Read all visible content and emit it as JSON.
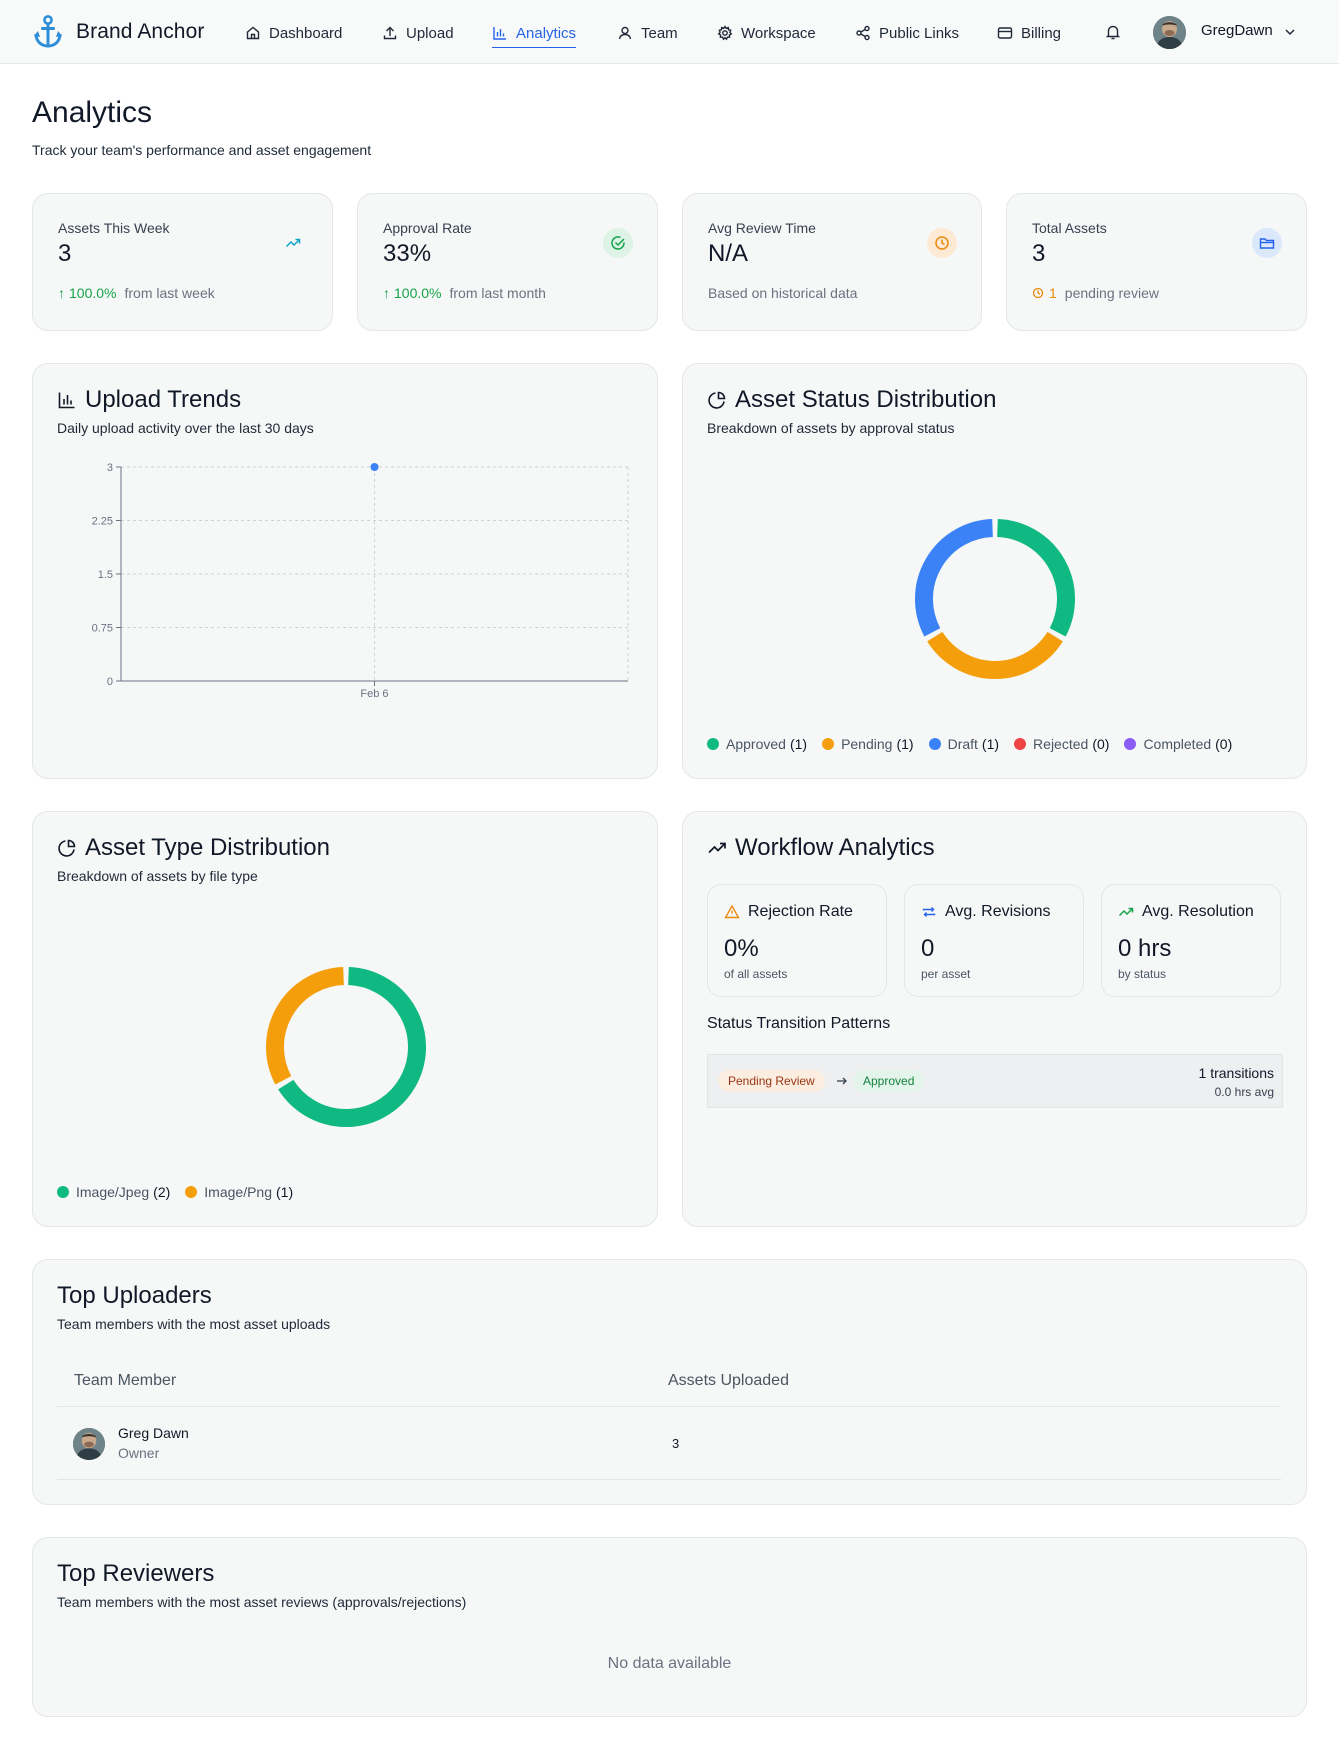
{
  "brand": {
    "name": "Brand Anchor",
    "accent": "#2e8fd8"
  },
  "nav": {
    "items": [
      {
        "label": "Dashboard",
        "icon": "home-icon"
      },
      {
        "label": "Upload",
        "icon": "upload-icon"
      },
      {
        "label": "Analytics",
        "icon": "bar-chart-icon",
        "active": true
      },
      {
        "label": "Team",
        "icon": "user-icon"
      },
      {
        "label": "Workspace",
        "icon": "gear-icon"
      },
      {
        "label": "Public Links",
        "icon": "share-icon"
      },
      {
        "label": "Billing",
        "icon": "credit-card-icon"
      }
    ],
    "user": "GregDawn"
  },
  "header": {
    "title": "Analytics",
    "subtitle": "Track your team's performance and asset engagement"
  },
  "stats": [
    {
      "label": "Assets This Week",
      "value": "3",
      "delta": "100.0%",
      "note": "from last week",
      "icon": "trending-up-icon"
    },
    {
      "label": "Approval Rate",
      "value": "33%",
      "delta": "100.0%",
      "note": "from last month",
      "icon": "check-circle-icon"
    },
    {
      "label": "Avg Review Time",
      "value": "N/A",
      "note": "Based on historical data",
      "icon": "clock-icon"
    },
    {
      "label": "Total Assets",
      "value": "3",
      "delta": "1",
      "note": "pending review",
      "icon": "folder-icon"
    }
  ],
  "upload_trends": {
    "title": "Upload Trends",
    "subtitle": "Daily upload activity over the last 30 days"
  },
  "status_dist": {
    "title": "Asset Status Distribution",
    "subtitle": "Breakdown of assets by approval status"
  },
  "type_dist": {
    "title": "Asset Type Distribution",
    "subtitle": "Breakdown of assets by file type"
  },
  "workflow": {
    "title": "Workflow Analytics",
    "metrics": [
      {
        "label": "Rejection Rate",
        "value": "0%",
        "sub": "of all assets",
        "icon": "warning-icon",
        "color": "#ea8a0c"
      },
      {
        "label": "Avg. Revisions",
        "value": "0",
        "sub": "per asset",
        "icon": "repeat-icon",
        "color": "#2563eb"
      },
      {
        "label": "Avg. Resolution",
        "value": "0 hrs",
        "sub": "by status",
        "icon": "trending-up-icon",
        "color": "#16a34a"
      }
    ],
    "transitions_title": "Status Transition Patterns",
    "transition": {
      "from": "Pending Review",
      "to": "Approved",
      "count": "1 transitions",
      "avg": "0.0 hrs avg"
    }
  },
  "top_uploaders": {
    "title": "Top Uploaders",
    "subtitle": "Team members with the most asset uploads",
    "columns": [
      "Team Member",
      "Assets Uploaded"
    ],
    "rows": [
      {
        "name": "Greg Dawn",
        "role": "Owner",
        "count": "3"
      }
    ]
  },
  "top_reviewers": {
    "title": "Top Reviewers",
    "subtitle": "Team members with the most asset reviews (approvals/rejections)",
    "empty": "No data available"
  },
  "chart_data": [
    {
      "type": "line",
      "x": [
        "Feb 6"
      ],
      "series": [
        {
          "values": [
            3
          ]
        }
      ],
      "yticks": [
        "0",
        "0.75",
        "1.5",
        "2.25",
        "3"
      ],
      "ylim": [
        0,
        3
      ],
      "grid": true,
      "color": "#3b82f6"
    },
    {
      "type": "pie",
      "donut": true,
      "labels": [
        "Approved",
        "Pending",
        "Draft",
        "Rejected",
        "Completed"
      ],
      "values": [
        1,
        1,
        1,
        0,
        0
      ],
      "colors": [
        "#10b981",
        "#f59e0b",
        "#3b82f6",
        "#ef4444",
        "#8b5cf6"
      ],
      "legend": "bottom"
    },
    {
      "type": "pie",
      "donut": true,
      "labels": [
        "Image/Jpeg",
        "Image/Png"
      ],
      "values": [
        2,
        1
      ],
      "colors": [
        "#10b981",
        "#f59e0b"
      ],
      "legend": "bottom"
    }
  ]
}
